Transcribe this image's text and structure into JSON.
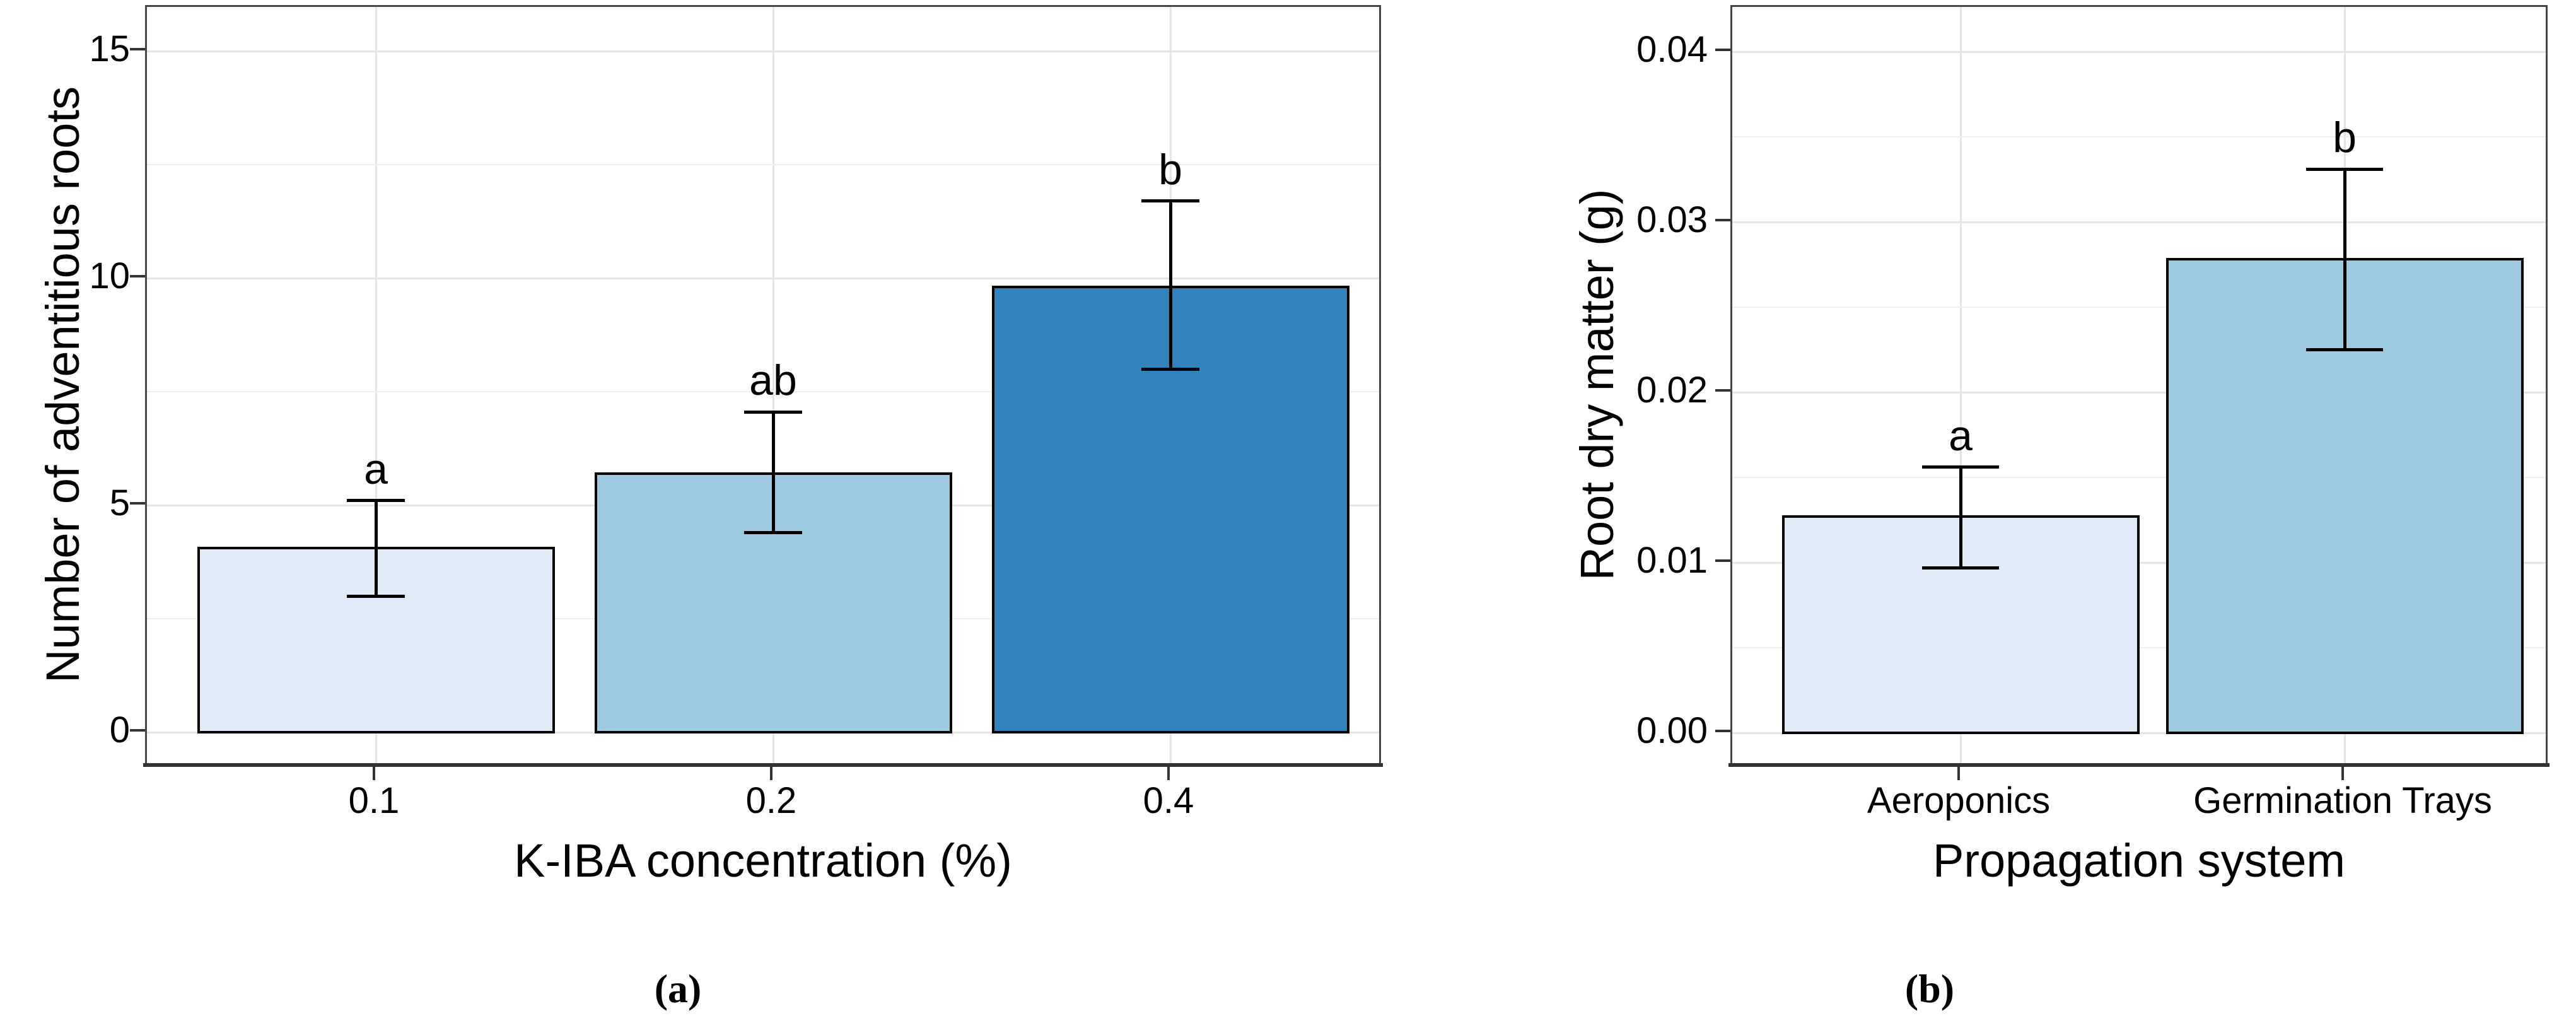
{
  "figure": {
    "background_color": "#ffffff",
    "text_color": "#000000",
    "panel_border_color": "#464646",
    "axis_line_color": "#333333",
    "major_grid_color": "#e4e4e4",
    "minor_grid_color": "#f0f0f0",
    "error_bar_color": "#000000",
    "bar_edge_color": "#000000"
  },
  "chart_data": [
    {
      "type": "bar",
      "panel_caption": "(a)",
      "title": "",
      "xlabel": "K-IBA concentration (%)",
      "ylabel": "Number of adventitious roots",
      "categories": [
        "0.1",
        "0.2",
        "0.4"
      ],
      "values": [
        4.05,
        5.7,
        9.8
      ],
      "error_bars": {
        "lower": [
          3.0,
          4.4,
          8.0
        ],
        "upper": [
          5.1,
          7.05,
          11.7
        ]
      },
      "sig_letters": [
        "a",
        "ab",
        "b"
      ],
      "bar_fill_colors": [
        "#deebf7",
        "#9ecae1",
        "#3182bd"
      ],
      "ylim": [
        0,
        16
      ],
      "yticks": [
        0,
        5,
        10,
        15
      ],
      "ytick_labels": [
        "0",
        "5",
        "10",
        "15"
      ],
      "yminor": [
        2.5,
        7.5,
        12.5
      ],
      "grid": "horizontal major+minor, vertical major at categories",
      "legend": "none"
    },
    {
      "type": "bar",
      "panel_caption": "(b)",
      "title": "",
      "xlabel": "Propagation system",
      "ylabel": "Root dry matter (g)",
      "categories": [
        "Aeroponics",
        "Germination Trays"
      ],
      "values": [
        0.0127,
        0.0278
      ],
      "error_bars": {
        "lower": [
          0.0097,
          0.0225
        ],
        "upper": [
          0.0156,
          0.0331
        ]
      },
      "sig_letters": [
        "a",
        "b"
      ],
      "bar_fill_colors": [
        "#deebf7",
        "#9ecae1"
      ],
      "ylim": [
        0,
        0.0426
      ],
      "yticks": [
        0,
        0.01,
        0.02,
        0.03,
        0.04
      ],
      "ytick_labels": [
        "0.00",
        "0.01",
        "0.02",
        "0.03",
        "0.04"
      ],
      "yminor": [
        0.005,
        0.015,
        0.025,
        0.035
      ],
      "grid": "horizontal major+minor, vertical major at categories",
      "legend": "none"
    }
  ]
}
